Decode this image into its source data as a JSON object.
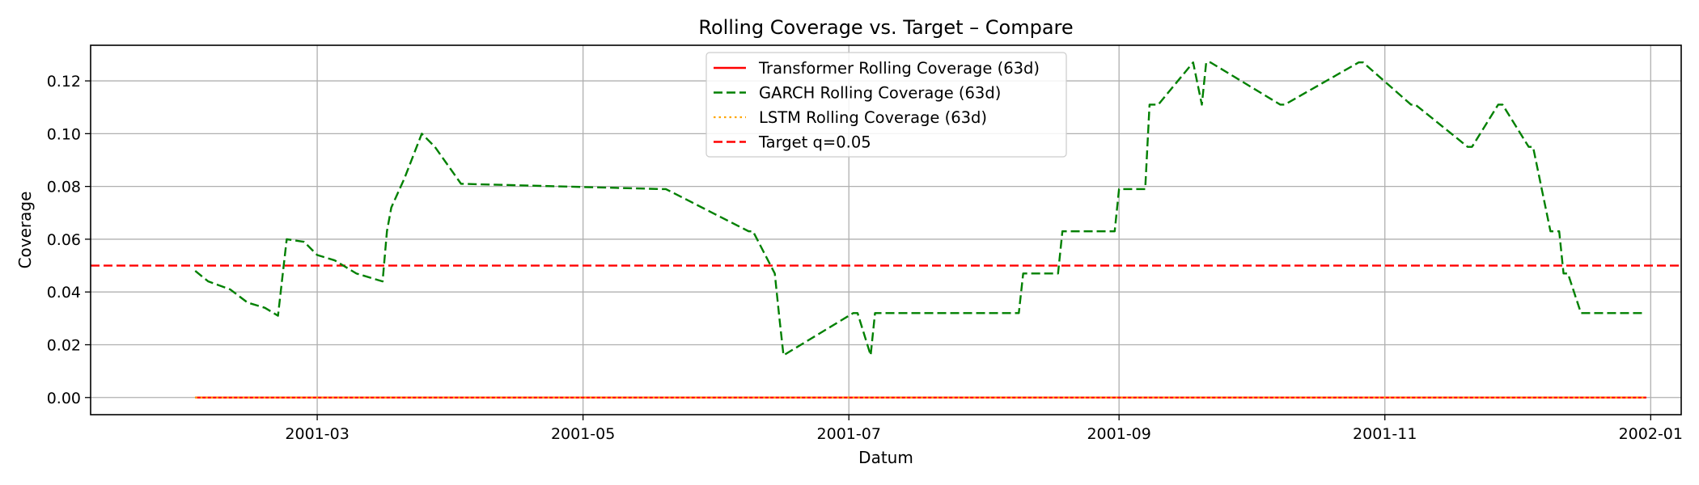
{
  "chart_data": {
    "type": "line",
    "title": "Rolling Coverage vs. Target – Compare",
    "xlabel": "Datum",
    "ylabel": "Coverage",
    "xlim": [
      "2001-01-08",
      "2002-01-08"
    ],
    "ylim": [
      -0.0065,
      0.1335
    ],
    "x_ticks": [
      {
        "date": "2001-03-01",
        "label": "2001-03"
      },
      {
        "date": "2001-05-01",
        "label": "2001-05"
      },
      {
        "date": "2001-07-01",
        "label": "2001-07"
      },
      {
        "date": "2001-09-01",
        "label": "2001-09"
      },
      {
        "date": "2001-11-01",
        "label": "2001-11"
      },
      {
        "date": "2002-01-01",
        "label": "2002-01"
      }
    ],
    "y_ticks": [
      0.0,
      0.02,
      0.04,
      0.06,
      0.08,
      0.1,
      0.12
    ],
    "y_tick_labels": [
      "0.00",
      "0.02",
      "0.04",
      "0.06",
      "0.08",
      "0.10",
      "0.12"
    ],
    "grid": true,
    "legend_position": "top-center",
    "series": [
      {
        "name": "Transformer Rolling Coverage (63d)",
        "color": "#ff0000",
        "style": "solid",
        "x": [
          "2001-02-01",
          "2001-12-31"
        ],
        "y": [
          0.0,
          0.0
        ]
      },
      {
        "name": "GARCH Rolling Coverage (63d)",
        "color": "#008000",
        "style": "dashed",
        "x": [
          "2001-02-01",
          "2001-02-04",
          "2001-02-09",
          "2001-02-13",
          "2001-02-17",
          "2001-02-20",
          "2001-02-22",
          "2001-02-26",
          "2001-03-01",
          "2001-03-05",
          "2001-03-09",
          "2001-03-10",
          "2001-03-16",
          "2001-03-17",
          "2001-03-18",
          "2001-03-21",
          "2001-03-25",
          "2001-03-28",
          "2001-03-31",
          "2001-04-03",
          "2001-05-19",
          "2001-05-20",
          "2001-06-08",
          "2001-06-09",
          "2001-06-14",
          "2001-06-15",
          "2001-06-16",
          "2001-07-02",
          "2001-07-03",
          "2001-07-06",
          "2001-07-07",
          "2001-08-09",
          "2001-08-10",
          "2001-08-18",
          "2001-08-19",
          "2001-08-31",
          "2001-09-01",
          "2001-09-07",
          "2001-09-08",
          "2001-09-10",
          "2001-09-18",
          "2001-09-20",
          "2001-09-21",
          "2001-09-22",
          "2001-10-08",
          "2001-10-09",
          "2001-10-26",
          "2001-10-27",
          "2001-11-07",
          "2001-11-08",
          "2001-11-20",
          "2001-11-21",
          "2001-11-27",
          "2001-11-28",
          "2001-12-04",
          "2001-12-05",
          "2001-12-09",
          "2001-12-11",
          "2001-12-12",
          "2001-12-13",
          "2001-12-16",
          "2001-12-17",
          "2001-12-30"
        ],
        "y": [
          0.048,
          0.044,
          0.041,
          0.036,
          0.034,
          0.031,
          0.06,
          0.059,
          0.054,
          0.052,
          0.048,
          0.047,
          0.044,
          0.063,
          0.072,
          0.083,
          0.1,
          0.095,
          0.088,
          0.081,
          0.079,
          0.079,
          0.063,
          0.063,
          0.047,
          0.031,
          0.016,
          0.032,
          0.032,
          0.016,
          0.032,
          0.032,
          0.047,
          0.047,
          0.063,
          0.063,
          0.079,
          0.079,
          0.111,
          0.111,
          0.127,
          0.111,
          0.127,
          0.127,
          0.111,
          0.111,
          0.127,
          0.127,
          0.111,
          0.111,
          0.095,
          0.095,
          0.111,
          0.111,
          0.095,
          0.095,
          0.063,
          0.063,
          0.047,
          0.047,
          0.032,
          0.032,
          0.032
        ]
      },
      {
        "name": "LSTM Rolling Coverage (63d)",
        "color": "#ffa500",
        "style": "dotted",
        "x": [
          "2001-02-01",
          "2001-12-31"
        ],
        "y": [
          0.0,
          0.0
        ]
      },
      {
        "name": "Target q=0.05",
        "color": "#ff0000",
        "style": "dashed",
        "horizontal_line": 0.05
      }
    ]
  }
}
